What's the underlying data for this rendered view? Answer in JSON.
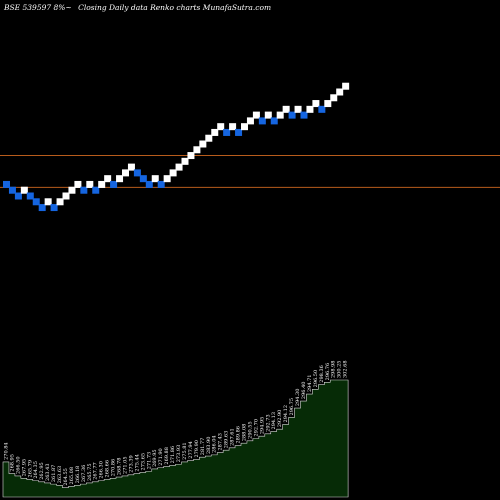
{
  "header": {
    "symbol": "BSE 539597 8%~",
    "description": "Closing Daily data  Renko  charts MunafaSutra.com"
  },
  "colors": {
    "background": "#000000",
    "up_brick": "#ffffff",
    "down_brick": "#1565e0",
    "reference_line": "#b85c1c",
    "volume_fill": "#062b06",
    "volume_outline": "#d8d8d8",
    "label_text": "#ffffff"
  },
  "chart_data": {
    "type": "renko",
    "bricks": [
      {
        "level": 270,
        "dir": "down"
      },
      {
        "level": 268,
        "dir": "down"
      },
      {
        "level": 266,
        "dir": "down"
      },
      {
        "level": 268,
        "dir": "up"
      },
      {
        "level": 266,
        "dir": "down"
      },
      {
        "level": 264,
        "dir": "down"
      },
      {
        "level": 262,
        "dir": "down"
      },
      {
        "level": 264,
        "dir": "up"
      },
      {
        "level": 262,
        "dir": "down"
      },
      {
        "level": 264,
        "dir": "up"
      },
      {
        "level": 266,
        "dir": "up"
      },
      {
        "level": 268,
        "dir": "up"
      },
      {
        "level": 270,
        "dir": "up"
      },
      {
        "level": 268,
        "dir": "down"
      },
      {
        "level": 270,
        "dir": "up"
      },
      {
        "level": 268,
        "dir": "down"
      },
      {
        "level": 270,
        "dir": "up"
      },
      {
        "level": 272,
        "dir": "up"
      },
      {
        "level": 270,
        "dir": "down"
      },
      {
        "level": 272,
        "dir": "up"
      },
      {
        "level": 274,
        "dir": "up"
      },
      {
        "level": 276,
        "dir": "up"
      },
      {
        "level": 274,
        "dir": "down"
      },
      {
        "level": 272,
        "dir": "down"
      },
      {
        "level": 270,
        "dir": "down"
      },
      {
        "level": 272,
        "dir": "up"
      },
      {
        "level": 270,
        "dir": "down"
      },
      {
        "level": 272,
        "dir": "up"
      },
      {
        "level": 274,
        "dir": "up"
      },
      {
        "level": 276,
        "dir": "up"
      },
      {
        "level": 278,
        "dir": "up"
      },
      {
        "level": 280,
        "dir": "up"
      },
      {
        "level": 282,
        "dir": "up"
      },
      {
        "level": 284,
        "dir": "up"
      },
      {
        "level": 286,
        "dir": "up"
      },
      {
        "level": 288,
        "dir": "up"
      },
      {
        "level": 290,
        "dir": "up"
      },
      {
        "level": 288,
        "dir": "down"
      },
      {
        "level": 290,
        "dir": "up"
      },
      {
        "level": 288,
        "dir": "down"
      },
      {
        "level": 290,
        "dir": "up"
      },
      {
        "level": 292,
        "dir": "up"
      },
      {
        "level": 294,
        "dir": "up"
      },
      {
        "level": 292,
        "dir": "down"
      },
      {
        "level": 294,
        "dir": "up"
      },
      {
        "level": 292,
        "dir": "down"
      },
      {
        "level": 294,
        "dir": "up"
      },
      {
        "level": 296,
        "dir": "up"
      },
      {
        "level": 294,
        "dir": "down"
      },
      {
        "level": 296,
        "dir": "up"
      },
      {
        "level": 294,
        "dir": "down"
      },
      {
        "level": 296,
        "dir": "up"
      },
      {
        "level": 298,
        "dir": "up"
      },
      {
        "level": 296,
        "dir": "down"
      },
      {
        "level": 298,
        "dir": "up"
      },
      {
        "level": 300,
        "dir": "up"
      },
      {
        "level": 302,
        "dir": "up"
      },
      {
        "level": 304,
        "dir": "up"
      }
    ],
    "reference_lines": [
      280,
      269
    ],
    "y_range": [
      230,
      320
    ],
    "volume": [
      {
        "v": 30,
        "label": "270.84"
      },
      {
        "v": 20,
        "label": "268.95"
      },
      {
        "v": 18,
        "label": "266.50"
      },
      {
        "v": 16,
        "label": "267.95"
      },
      {
        "v": 15,
        "label": "265.79"
      },
      {
        "v": 14,
        "label": "264.35"
      },
      {
        "v": 13,
        "label": "262.95"
      },
      {
        "v": 12,
        "label": "263.43"
      },
      {
        "v": 11,
        "label": "261.87"
      },
      {
        "v": 10,
        "label": "263.63"
      },
      {
        "v": 8,
        "label": "264.55"
      },
      {
        "v": 9,
        "label": "265.08"
      },
      {
        "v": 10,
        "label": "266.18"
      },
      {
        "v": 11,
        "label": "267.36"
      },
      {
        "v": 12,
        "label": "265.75"
      },
      {
        "v": 13,
        "label": "267.77"
      },
      {
        "v": 14,
        "label": "266.30"
      },
      {
        "v": 15,
        "label": "268.66"
      },
      {
        "v": 16,
        "label": "270.86"
      },
      {
        "v": 17,
        "label": "268.78"
      },
      {
        "v": 18,
        "label": "271.05"
      },
      {
        "v": 19,
        "label": "273.39"
      },
      {
        "v": 20,
        "label": "275.44"
      },
      {
        "v": 21,
        "label": "273.65"
      },
      {
        "v": 22,
        "label": "271.73"
      },
      {
        "v": 24,
        "label": "269.95"
      },
      {
        "v": 25,
        "label": "271.90"
      },
      {
        "v": 26,
        "label": "269.88"
      },
      {
        "v": 27,
        "label": "271.86"
      },
      {
        "v": 28,
        "label": "273.93"
      },
      {
        "v": 30,
        "label": "275.81"
      },
      {
        "v": 31,
        "label": "277.94"
      },
      {
        "v": 32,
        "label": "279.90"
      },
      {
        "v": 34,
        "label": "281.77"
      },
      {
        "v": 35,
        "label": "283.90"
      },
      {
        "v": 36,
        "label": "286.04"
      },
      {
        "v": 38,
        "label": "287.43"
      },
      {
        "v": 40,
        "label": "289.63"
      },
      {
        "v": 42,
        "label": "287.61"
      },
      {
        "v": 44,
        "label": "289.86"
      },
      {
        "v": 46,
        "label": "288.08"
      },
      {
        "v": 48,
        "label": "290.55"
      },
      {
        "v": 50,
        "label": "292.70"
      },
      {
        "v": 52,
        "label": "294.95"
      },
      {
        "v": 54,
        "label": "292.73"
      },
      {
        "v": 56,
        "label": "294.13"
      },
      {
        "v": 58,
        "label": "292.90"
      },
      {
        "v": 62,
        "label": "294.12"
      },
      {
        "v": 68,
        "label": "296.75"
      },
      {
        "v": 76,
        "label": "294.30"
      },
      {
        "v": 82,
        "label": "296.40"
      },
      {
        "v": 88,
        "label": "294.71"
      },
      {
        "v": 92,
        "label": "296.50"
      },
      {
        "v": 96,
        "label": "298.36"
      },
      {
        "v": 98,
        "label": "296.76"
      },
      {
        "v": 100,
        "label": "298.98"
      },
      {
        "v": 100,
        "label": "300.25"
      },
      {
        "v": 100,
        "label": "302.68"
      }
    ]
  }
}
